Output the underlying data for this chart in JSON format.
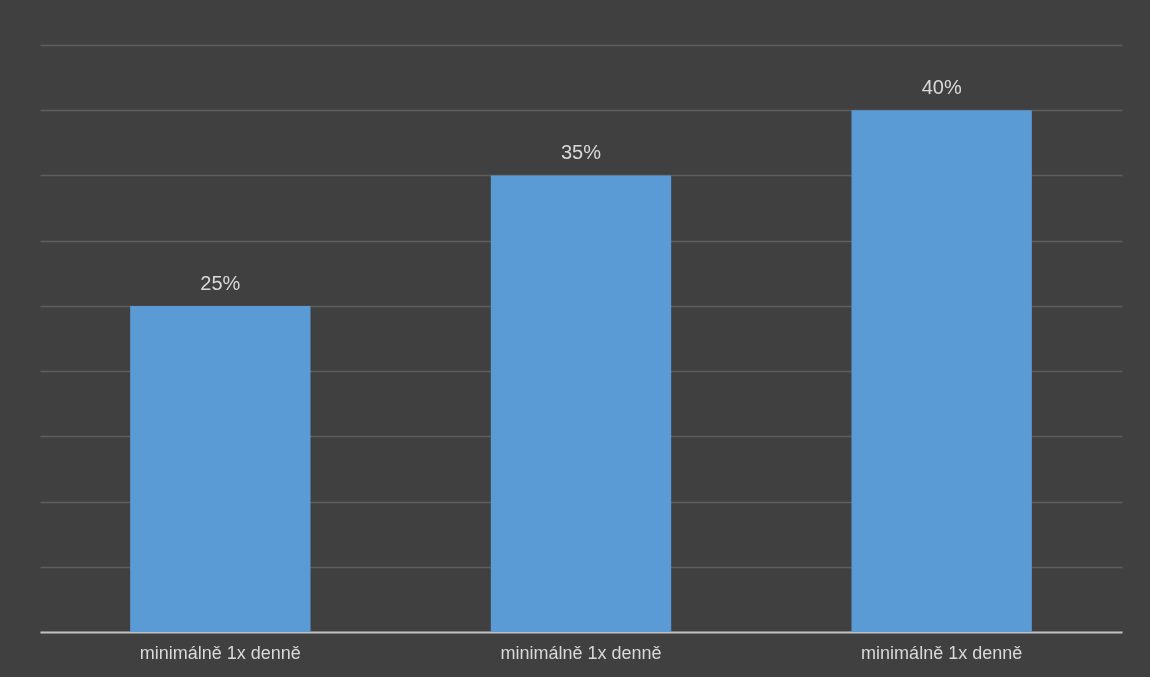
{
  "chart_data": {
    "type": "bar",
    "categories": [
      "minimálně 1x denně",
      "minimálně 1x denně",
      "minimálně 1x denně"
    ],
    "values": [
      25,
      35,
      40
    ],
    "color": "#5b9bd5",
    "value_labels": [
      "25%",
      "35%",
      "40%"
    ],
    "ylim": [
      0,
      45
    ],
    "yticks": [
      {
        "value": 0,
        "label": null
      },
      {
        "value": 5,
        "label": null
      },
      {
        "value": 10,
        "label": null
      },
      {
        "value": 15,
        "label": null
      },
      {
        "value": 20,
        "label": null
      },
      {
        "value": 25,
        "label": null
      },
      {
        "value": 30,
        "label": null
      },
      {
        "value": 35,
        "label": null
      },
      {
        "value": 40,
        "label": null
      },
      {
        "value": 45,
        "label": null
      }
    ],
    "grid": "y",
    "tick_labels": "x"
  }
}
